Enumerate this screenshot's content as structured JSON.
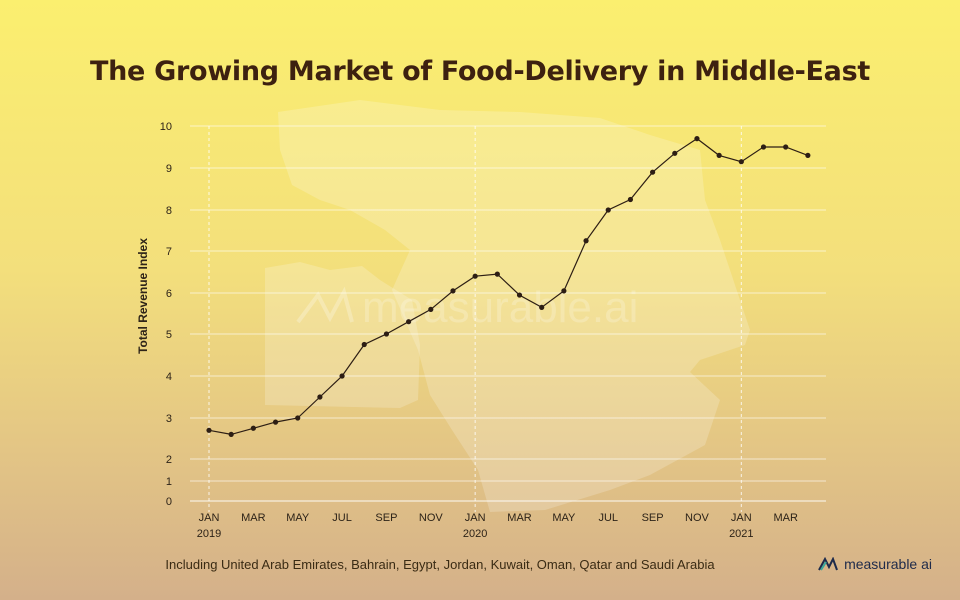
{
  "title": "The Growing Market of Food-Delivery in Middle-East",
  "caption": "Including United Arab Emirates, Bahrain, Egypt, Jordan, Kuwait, Oman, Qatar and Saudi Arabia",
  "brand": {
    "name": "measurable ai",
    "watermark": "measurable.ai",
    "icon": "measurable-ai-logo-icon"
  },
  "colors": {
    "line": "#2d1e14",
    "grid": "#ffffff",
    "title": "#3d2110"
  },
  "chart_data": {
    "type": "line",
    "title": "The Growing Market of Food-Delivery in Middle-East",
    "xlabel": "",
    "ylabel": "Total Revenue Index",
    "ylim": [
      0,
      10
    ],
    "yticks": [
      0,
      1,
      2,
      3,
      4,
      5,
      6,
      7,
      8,
      9,
      10
    ],
    "grid": true,
    "x_tick_labels": [
      {
        "label": "JAN",
        "year": "2019",
        "index": 0
      },
      {
        "label": "MAR",
        "year": "",
        "index": 2
      },
      {
        "label": "MAY",
        "year": "",
        "index": 4
      },
      {
        "label": "JUL",
        "year": "",
        "index": 6
      },
      {
        "label": "SEP",
        "year": "",
        "index": 8
      },
      {
        "label": "NOV",
        "year": "",
        "index": 10
      },
      {
        "label": "JAN",
        "year": "2020",
        "index": 12
      },
      {
        "label": "MAR",
        "year": "",
        "index": 14
      },
      {
        "label": "MAY",
        "year": "",
        "index": 16
      },
      {
        "label": "JUL",
        "year": "",
        "index": 18
      },
      {
        "label": "SEP",
        "year": "",
        "index": 20
      },
      {
        "label": "NOV",
        "year": "",
        "index": 22
      },
      {
        "label": "JAN",
        "year": "2021",
        "index": 24
      },
      {
        "label": "MAR",
        "year": "",
        "index": 26
      }
    ],
    "year_boundaries": [
      0,
      12,
      24
    ],
    "series": [
      {
        "x": [
          "2019-01",
          "2019-02",
          "2019-03",
          "2019-04",
          "2019-05",
          "2019-06",
          "2019-07",
          "2019-08",
          "2019-09",
          "2019-10",
          "2019-11",
          "2019-12",
          "2020-01",
          "2020-02",
          "2020-03",
          "2020-04",
          "2020-05",
          "2020-06",
          "2020-07",
          "2020-08",
          "2020-09",
          "2020-10",
          "2020-11",
          "2020-12",
          "2021-01",
          "2021-02",
          "2021-03",
          "2021-04"
        ],
        "values": [
          2.7,
          2.6,
          2.75,
          2.9,
          3.0,
          3.5,
          4.0,
          4.75,
          5.0,
          5.3,
          5.6,
          6.05,
          6.4,
          6.45,
          5.95,
          5.65,
          6.05,
          7.25,
          8.0,
          8.25,
          8.9,
          9.35,
          9.7,
          9.3,
          9.15,
          9.5,
          9.5,
          9.3
        ]
      }
    ]
  }
}
